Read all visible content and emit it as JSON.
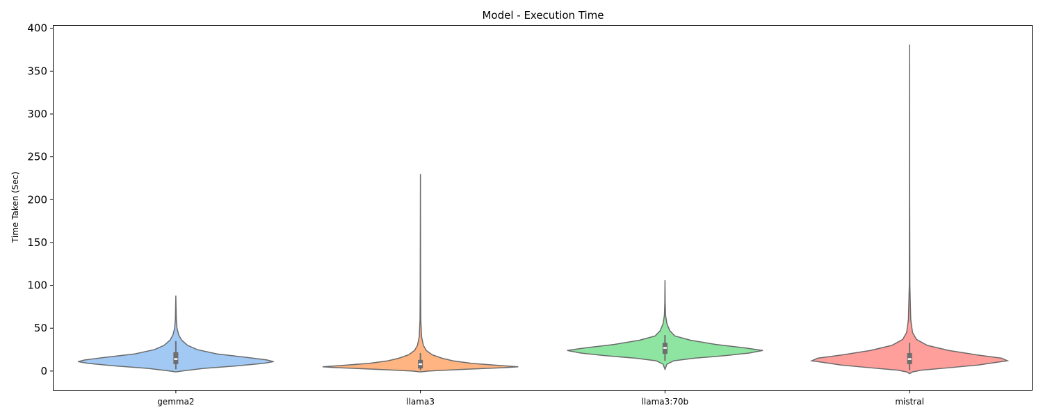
{
  "chart_data": {
    "type": "violin",
    "title": "Model - Execution Time",
    "xlabel": "",
    "ylabel": "Time Taken (Sec)",
    "ylim": [
      -22,
      403
    ],
    "yticks": [
      0,
      50,
      100,
      150,
      200,
      250,
      300,
      350,
      400
    ],
    "grid": false,
    "categories": [
      "gemma2",
      "llama3",
      "llama3:70b",
      "mistral"
    ],
    "colors": [
      "#a1c9f4",
      "#ffb482",
      "#8de5a1",
      "#ff9f9b"
    ],
    "stats": [
      {
        "min": -1,
        "q1": 8,
        "median": 14,
        "q3": 22,
        "whisker_low": 2,
        "whisker_high": 35,
        "max": 88
      },
      {
        "min": -1,
        "q1": 3,
        "median": 8,
        "q3": 13,
        "whisker_low": 1,
        "whisker_high": 21,
        "max": 230
      },
      {
        "min": 2,
        "q1": 20,
        "median": 27,
        "q3": 33,
        "whisker_low": 12,
        "whisker_high": 42,
        "max": 106
      },
      {
        "min": -3,
        "q1": 8,
        "median": 14,
        "q3": 21,
        "whisker_low": 1,
        "whisker_high": 33,
        "max": 381
      }
    ],
    "density": [
      [
        [
          -1,
          0.0
        ],
        [
          0,
          0.06
        ],
        [
          3,
          0.28
        ],
        [
          6,
          0.62
        ],
        [
          9,
          0.9
        ],
        [
          11,
          1.0
        ],
        [
          13,
          0.93
        ],
        [
          16,
          0.72
        ],
        [
          20,
          0.42
        ],
        [
          25,
          0.22
        ],
        [
          30,
          0.12
        ],
        [
          36,
          0.06
        ],
        [
          42,
          0.03
        ],
        [
          50,
          0.012
        ],
        [
          60,
          0.005
        ],
        [
          75,
          0.002
        ],
        [
          88,
          0.0
        ]
      ],
      [
        [
          -1,
          0.0
        ],
        [
          0,
          0.08
        ],
        [
          2,
          0.45
        ],
        [
          4,
          0.86
        ],
        [
          5,
          1.0
        ],
        [
          7,
          0.75
        ],
        [
          9,
          0.52
        ],
        [
          12,
          0.33
        ],
        [
          15,
          0.22
        ],
        [
          19,
          0.12
        ],
        [
          24,
          0.06
        ],
        [
          30,
          0.03
        ],
        [
          40,
          0.012
        ],
        [
          60,
          0.004
        ],
        [
          100,
          0.002
        ],
        [
          160,
          0.001
        ],
        [
          230,
          0.0
        ]
      ],
      [
        [
          2,
          0.0
        ],
        [
          8,
          0.02
        ],
        [
          12,
          0.09
        ],
        [
          15,
          0.3
        ],
        [
          18,
          0.62
        ],
        [
          21,
          0.86
        ],
        [
          24,
          1.0
        ],
        [
          27,
          0.82
        ],
        [
          31,
          0.52
        ],
        [
          36,
          0.26
        ],
        [
          41,
          0.1
        ],
        [
          47,
          0.05
        ],
        [
          55,
          0.02
        ],
        [
          65,
          0.006
        ],
        [
          80,
          0.002
        ],
        [
          106,
          0.0
        ]
      ],
      [
        [
          -3,
          0.0
        ],
        [
          -1,
          0.03
        ],
        [
          1,
          0.12
        ],
        [
          4,
          0.42
        ],
        [
          7,
          0.7
        ],
        [
          10,
          0.88
        ],
        [
          12,
          1.0
        ],
        [
          15,
          0.94
        ],
        [
          19,
          0.68
        ],
        [
          24,
          0.4
        ],
        [
          30,
          0.18
        ],
        [
          37,
          0.07
        ],
        [
          45,
          0.03
        ],
        [
          60,
          0.012
        ],
        [
          100,
          0.003
        ],
        [
          200,
          0.001
        ],
        [
          300,
          0.0005
        ],
        [
          381,
          0.0
        ]
      ]
    ]
  }
}
